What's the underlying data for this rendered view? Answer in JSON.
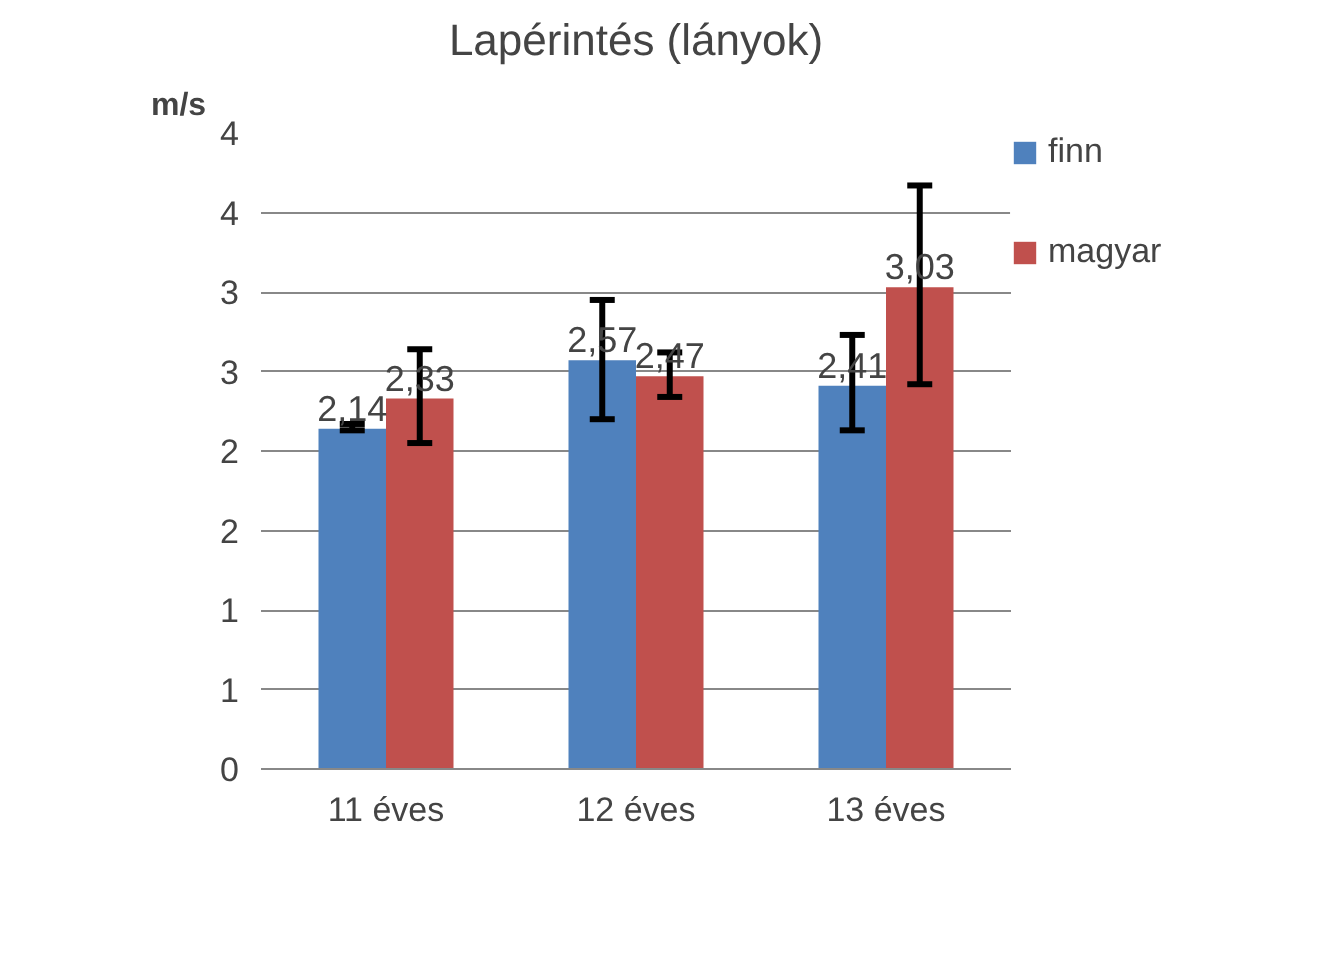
{
  "chart_data": {
    "type": "bar",
    "title": "Lapérintés (lányok)",
    "ylabel": "m/s",
    "categories": [
      "11 éves",
      "12 éves",
      "13 éves"
    ],
    "series": [
      {
        "name": "finn",
        "color": "#4f81bd",
        "values": [
          2.14,
          2.57,
          2.41
        ],
        "value_labels": [
          "2,14",
          "2,57",
          "2,41"
        ],
        "errors": [
          [
            2.13,
            2.17
          ],
          [
            2.2,
            2.95
          ],
          [
            2.13,
            2.73
          ]
        ]
      },
      {
        "name": "magyar",
        "color": "#c0504d",
        "values": [
          2.33,
          2.47,
          3.03
        ],
        "value_labels": [
          "2,33",
          "2,47",
          "3,03"
        ],
        "errors": [
          [
            2.05,
            2.64
          ],
          [
            2.34,
            2.62
          ],
          [
            2.42,
            3.67
          ]
        ]
      }
    ],
    "ylim": [
      0,
      4
    ],
    "yticks": [
      0,
      {
        "value": 0.5,
        "label": "1"
      },
      1,
      {
        "value": 1.5,
        "label": "2"
      },
      2,
      {
        "value": 2.5,
        "label": "3"
      },
      3,
      {
        "value": 3.5,
        "label": "4"
      },
      4
    ],
    "grid": "y",
    "legend": "right"
  }
}
